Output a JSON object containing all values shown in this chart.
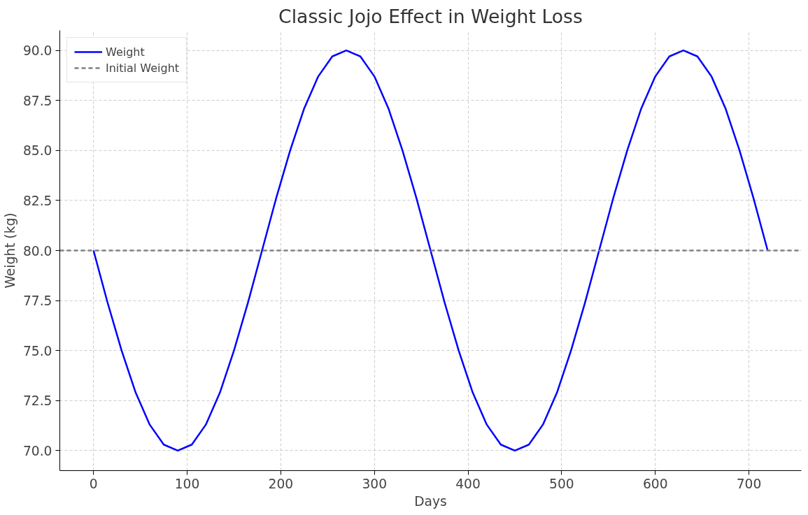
{
  "chart_data": {
    "type": "line",
    "title": "Classic Jojo Effect in Weight Loss",
    "xlabel": "Days",
    "ylabel": "Weight (kg)",
    "x": [
      0,
      15,
      30,
      45,
      60,
      75,
      90,
      105,
      120,
      135,
      150,
      165,
      180,
      195,
      210,
      225,
      240,
      255,
      270,
      285,
      300,
      315,
      330,
      345,
      360,
      375,
      390,
      405,
      420,
      435,
      450,
      465,
      480,
      495,
      510,
      525,
      540,
      555,
      570,
      585,
      600,
      615,
      630,
      645,
      660,
      675,
      690,
      705,
      720
    ],
    "series": [
      {
        "name": "Weight",
        "color": "#0000ff",
        "values": [
          80,
          77.4,
          75,
          72.9,
          71.3,
          70.3,
          70,
          70.3,
          71.3,
          72.9,
          75,
          77.4,
          80,
          82.6,
          85,
          87.1,
          88.7,
          89.7,
          90,
          89.7,
          88.7,
          87.1,
          85,
          82.6,
          80,
          77.4,
          75,
          72.9,
          71.3,
          70.3,
          70,
          70.3,
          71.3,
          72.9,
          75,
          77.4,
          80,
          82.6,
          85,
          87.1,
          88.7,
          89.7,
          90,
          89.7,
          88.7,
          87.1,
          85,
          82.6,
          80
        ]
      }
    ],
    "ref_lines": [
      {
        "axis": "y",
        "value": 80,
        "label": "Initial Weight",
        "color": "#808080",
        "line_style": "dashed"
      }
    ],
    "xlim": [
      -36,
      756
    ],
    "ylim": [
      69,
      91
    ],
    "xticks": [
      0,
      100,
      200,
      300,
      400,
      500,
      600,
      700
    ],
    "yticks": [
      {
        "value": 70,
        "label": "70.0"
      },
      72.5,
      {
        "value": 75,
        "label": "75.0"
      },
      77.5,
      {
        "value": 80,
        "label": "80.0"
      },
      82.5,
      {
        "value": 85,
        "label": "85.0"
      },
      87.5,
      {
        "value": 90,
        "label": "90.0"
      }
    ],
    "grid": true,
    "legend": "top left",
    "line_style": "solid",
    "marker": "none"
  }
}
